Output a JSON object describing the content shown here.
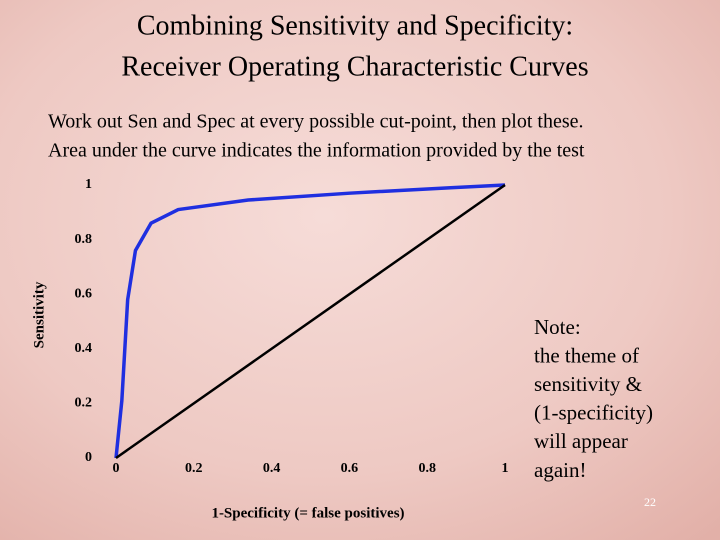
{
  "chart_data": {
    "type": "line",
    "title": [
      "Combining Sensitivity and Specificity:",
      "Receiver Operating Characteristic Curves"
    ],
    "subtitle": [
      "Work out Sen and Spec at every possible cut-point, then plot these.",
      "Area under the curve indicates the information provided by the test"
    ],
    "x_label": "1-Specificity (= false positives)",
    "y_label": "Sensitivity",
    "xlim": [
      0,
      1
    ],
    "ylim": [
      0,
      1
    ],
    "xticks": [
      0,
      0.2,
      0.4,
      0.6,
      0.8,
      1
    ],
    "yticks": [
      0,
      0.2,
      0.4,
      0.6,
      0.8,
      1
    ],
    "grid": false,
    "series": [
      {
        "color": "#1f2fe0",
        "x": [
          0,
          0.015,
          0.03,
          0.05,
          0.09,
          0.16,
          0.34,
          0.6,
          0.86,
          1
        ],
        "values": [
          0,
          0.21,
          0.58,
          0.76,
          0.86,
          0.91,
          0.945,
          0.97,
          0.99,
          1
        ]
      },
      {
        "color": "#000000",
        "x": [
          0,
          1
        ],
        "values": [
          0,
          1
        ]
      }
    ],
    "annotations": [
      "Note:",
      "the theme of",
      "sensitivity &",
      "(1-specificity)",
      "will appear",
      "again!"
    ],
    "page_number": 22
  }
}
